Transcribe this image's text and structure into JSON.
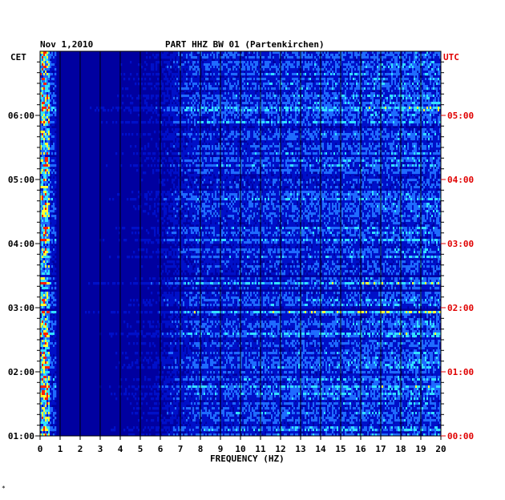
{
  "chart_data": {
    "type": "heatmap",
    "date": "Nov 1,2010",
    "title": "PART HHZ BW 01 (Partenkirchen)",
    "left_axis_label": "CET",
    "right_axis_label": "UTC",
    "xlabel": "FREQUENCY (HZ)",
    "xlim": [
      0,
      20
    ],
    "x_ticks": [
      "0",
      "1",
      "2",
      "3",
      "4",
      "5",
      "6",
      "7",
      "8",
      "9",
      "10",
      "11",
      "12",
      "13",
      "14",
      "15",
      "16",
      "17",
      "18",
      "19",
      "20"
    ],
    "cet_ticks": [
      "06:00",
      "05:00",
      "04:00",
      "03:00",
      "02:00",
      "01:00"
    ],
    "utc_ticks": [
      "05:00",
      "04:00",
      "03:00",
      "02:00",
      "01:00",
      "00:00"
    ],
    "colors": {
      "background": "#0000a0",
      "low": "#0010c8",
      "mid": "#1f6bff",
      "high": "#33e0ff",
      "peak": "#ffff33",
      "extreme": "#ff2000",
      "utc_label": "#e00000"
    },
    "bottom_mark": "*"
  }
}
